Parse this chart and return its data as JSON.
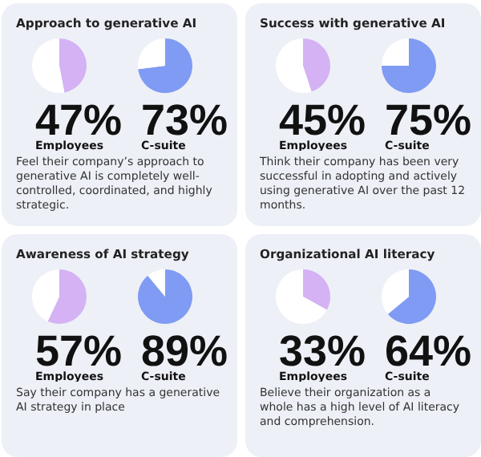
{
  "chart_data": [
    {
      "type": "pie",
      "title": "Approach to generative AI",
      "categories": [
        null,
        null
      ],
      "series": [
        {
          "name": "Employees",
          "colors": [
            "#d4b2f4",
            "#ffffff"
          ],
          "values": [
            47,
            53
          ],
          "value_labels": [
            "47%",
            null
          ]
        },
        {
          "name": "C-suite",
          "colors": [
            "#7f9bf3",
            "#ffffff"
          ],
          "values": [
            73,
            27
          ],
          "value_labels": [
            "73%",
            null
          ]
        }
      ],
      "annotations": [
        "Feel their company’s approach to generative AI is completely well-controlled, coordinated, and highly strategic."
      ]
    },
    {
      "type": "pie",
      "title": "Success with generative AI",
      "categories": [
        null,
        null
      ],
      "series": [
        {
          "name": "Employees",
          "colors": [
            "#d4b2f4",
            "#ffffff"
          ],
          "values": [
            45,
            55
          ],
          "value_labels": [
            "45%",
            null
          ]
        },
        {
          "name": "C-suite",
          "colors": [
            "#7f9bf3",
            "#ffffff"
          ],
          "values": [
            75,
            25
          ],
          "value_labels": [
            "75%",
            null
          ]
        }
      ],
      "annotations": [
        "Think their company has been very successful in adopting and actively using generative AI over the past 12 months."
      ]
    },
    {
      "type": "pie",
      "title": "Awareness of AI strategy",
      "categories": [
        null,
        null
      ],
      "series": [
        {
          "name": "Employees",
          "colors": [
            "#d4b2f4",
            "#ffffff"
          ],
          "values": [
            57,
            43
          ],
          "value_labels": [
            "57%",
            null
          ]
        },
        {
          "name": "C-suite",
          "colors": [
            "#7f9bf3",
            "#ffffff"
          ],
          "values": [
            89,
            11
          ],
          "value_labels": [
            "89%",
            null
          ]
        }
      ],
      "annotations": [
        "Say their company has a generative AI strategy in place"
      ]
    },
    {
      "type": "pie",
      "title": "Organizational AI literacy",
      "categories": [
        null,
        null
      ],
      "series": [
        {
          "name": "Employees",
          "colors": [
            "#d4b2f4",
            "#ffffff"
          ],
          "values": [
            33,
            67
          ],
          "value_labels": [
            "33%",
            null
          ]
        },
        {
          "name": "C-suite",
          "colors": [
            "#7f9bf3",
            "#ffffff"
          ],
          "values": [
            64,
            36
          ],
          "value_labels": [
            "64%",
            null
          ]
        }
      ],
      "annotations": [
        "Believe their organization as a whole has a high level of AI literacy and comprehension."
      ]
    }
  ]
}
